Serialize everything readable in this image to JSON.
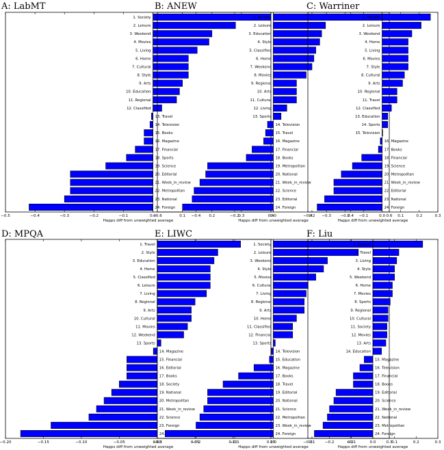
{
  "chart_data": [
    {
      "type": "bar",
      "title": "A: LabMT",
      "xlabel": "Happs diff from unweighted average",
      "xlim": [
        -0.5,
        0.4
      ],
      "xticks": [
        -0.5,
        -0.4,
        -0.3,
        -0.2,
        -0.1,
        0.0,
        0.1,
        0.2,
        0.3,
        0.4
      ],
      "tick_labels": [
        "−0.5",
        "−0.4",
        "−0.3",
        "−0.2",
        "−0.1",
        "0.0",
        "0.1",
        "0.2",
        "0.3",
        "0.4"
      ],
      "categories": [
        "1. Society",
        "2. Leisure",
        "3. Weekend",
        "4. Movies",
        "5. Living",
        "6. Home",
        "7. Cultural",
        "8. Style",
        "9. Arts",
        "10. Education",
        "11. Regional",
        "12. Classified",
        "13. Travel",
        "14. Television",
        "15. Books",
        "16. Magazine",
        "17. Financial",
        "18. Sports",
        "19. Science",
        "20. Editorial",
        "21. Week_in_review",
        "22. Metropolitan",
        "23. National",
        "24. Foreign"
      ],
      "values": [
        0.4,
        0.28,
        0.2,
        0.19,
        0.15,
        0.12,
        0.12,
        0.12,
        0.1,
        0.09,
        0.08,
        0.03,
        -0.005,
        -0.01,
        -0.03,
        -0.03,
        -0.06,
        -0.09,
        -0.16,
        -0.28,
        -0.28,
        -0.28,
        -0.3,
        -0.42
      ]
    },
    {
      "type": "bar",
      "title": "B: ANEW",
      "xlabel": "Happs diff from unweighted average",
      "xlim": [
        -0.6,
        0.6
      ],
      "xticks": [
        -0.6,
        -0.4,
        -0.2,
        0.0,
        0.2,
        0.4,
        0.6
      ],
      "tick_labels": [
        "−0.6",
        "−0.4",
        "−0.2",
        "0.0",
        "0.2",
        "0.4",
        "0.6"
      ],
      "categories": [
        "1. Society",
        "2. Leisure",
        "3. Education",
        "4. Style",
        "5. Classified",
        "6. Home",
        "7. Weekend",
        "8. Movies",
        "9. Regional",
        "10. Arts",
        "11. Cultural",
        "12. Living",
        "13. Sports",
        "14. Television",
        "15. Travel",
        "16. Magazine",
        "17. Financial",
        "18. Books",
        "19. Metropolitan",
        "20. National",
        "21. Week_in_review",
        "22. Science",
        "23. Editorial",
        "24. Foreign"
      ],
      "values": [
        0.58,
        0.27,
        0.25,
        0.24,
        0.22,
        0.21,
        0.2,
        0.17,
        0.12,
        0.12,
        0.12,
        0.07,
        0.04,
        -0.03,
        -0.04,
        -0.05,
        -0.11,
        -0.14,
        -0.34,
        -0.35,
        -0.38,
        -0.41,
        -0.42,
        -0.47
      ]
    },
    {
      "type": "bar",
      "title": "C: Warriner",
      "xlabel": "Happs diff from unweighted average",
      "xlim": [
        -0.4,
        0.3
      ],
      "xticks": [
        -0.4,
        -0.3,
        -0.2,
        -0.1,
        0.0,
        0.1,
        0.2,
        0.3
      ],
      "tick_labels": [
        "−0.4",
        "−0.3",
        "−0.2",
        "−0.1",
        "0.0",
        "0.1",
        "0.2",
        "0.3"
      ],
      "categories": [
        "1. Society",
        "2. Leisure",
        "3. Weekend",
        "4. Home",
        "5. Living",
        "6. Movies",
        "7. Style",
        "8. Cultural",
        "9. Arts",
        "10. Regional",
        "11. Travel",
        "12. Classified",
        "13. Education",
        "14. Sports",
        "15. Television",
        "16. Magazine",
        "17. Books",
        "18. Financial",
        "19. Science",
        "20. Metropolitan",
        "21. Week_in_review",
        "22. Editorial",
        "23. National",
        "24. Foreign"
      ],
      "values": [
        0.26,
        0.21,
        0.16,
        0.14,
        0.14,
        0.14,
        0.14,
        0.12,
        0.11,
        0.08,
        0.08,
        0.05,
        0.03,
        0.03,
        0.0,
        -0.01,
        -0.02,
        -0.11,
        -0.16,
        -0.22,
        -0.26,
        -0.26,
        -0.31,
        -0.35
      ]
    },
    {
      "type": "bar",
      "title": "D: MPQA",
      "xlabel": "Happs diff from unweighted average",
      "xlim": [
        -0.2,
        0.15
      ],
      "xticks": [
        -0.2,
        -0.15,
        -0.1,
        -0.05,
        0.0,
        0.05,
        0.1,
        0.15
      ],
      "tick_labels": [
        "−0.20",
        "−0.15",
        "−0.10",
        "−0.05",
        "0.00",
        "0.05",
        "0.10",
        "0.15"
      ],
      "categories": [
        "1. Travel",
        "2. Style",
        "3. Education",
        "4. Home",
        "5. Classified",
        "6. Leisure",
        "7. Living",
        "8. Regional",
        "9. Arts",
        "10. Cultural",
        "11. Movies",
        "12. Weekend",
        "13. Sports",
        "14. Magazine",
        "15. Financial",
        "16. Editorial",
        "17. Books",
        "18. Society",
        "19. National",
        "20. Metropolitan",
        "21. Week_in_review",
        "22. Science",
        "23. Foreign",
        "24. Television"
      ],
      "values": [
        0.11,
        0.08,
        0.075,
        0.07,
        0.07,
        0.07,
        0.065,
        0.05,
        0.045,
        0.045,
        0.04,
        0.035,
        0.005,
        -0.005,
        -0.04,
        -0.04,
        -0.04,
        -0.05,
        -0.06,
        -0.07,
        -0.08,
        -0.09,
        -0.14,
        -0.18
      ]
    },
    {
      "type": "bar",
      "title": "E: LIWC",
      "xlabel": "Happs diff from unweighted average",
      "xlim": [
        -0.3,
        0.3
      ],
      "xticks": [
        -0.3,
        -0.2,
        -0.1,
        0.0,
        0.1,
        0.2,
        0.3
      ],
      "tick_labels": [
        "−0.3",
        "−0.2",
        "−0.1",
        "0.0",
        "0.1",
        "0.2",
        "0.3"
      ],
      "categories": [
        "1. Society",
        "2. Leisure",
        "3. Weekend",
        "4. Style",
        "5. Movies",
        "6. Cultural",
        "7. Living",
        "8. Regional",
        "9. Arts",
        "10. Home",
        "11. Classified",
        "12. Financial",
        "13. Sports",
        "14. Television",
        "15. Education",
        "16. Magazine",
        "17. Books",
        "18. Travel",
        "19. Editorial",
        "20. National",
        "21. Science",
        "22. Metropolitan",
        "23. Week_in_review",
        "24. Foreign"
      ],
      "values": [
        0.26,
        0.22,
        0.14,
        0.13,
        0.11,
        0.09,
        0.085,
        0.08,
        0.08,
        0.06,
        0.05,
        0.05,
        0.005,
        -0.005,
        -0.01,
        -0.05,
        -0.09,
        -0.13,
        -0.17,
        -0.17,
        -0.18,
        -0.19,
        -0.2,
        -0.28
      ]
    },
    {
      "type": "bar",
      "title": "F: Liu",
      "xlabel": "Happs diff from unweighted average",
      "xlim": [
        -0.3,
        0.3
      ],
      "xticks": [
        -0.3,
        -0.2,
        -0.1,
        0.0,
        0.1,
        0.2,
        0.3
      ],
      "tick_labels": [
        "−0.3",
        "−0.2",
        "−0.1",
        "0.0",
        "0.1",
        "0.2",
        "0.3"
      ],
      "categories": [
        "1. Leisure",
        "2. Travel",
        "3. Living",
        "4. Style",
        "5. Weekend",
        "6. Home",
        "7. Movies",
        "8. Sports",
        "9. Regional",
        "10. Cultural",
        "11. Society",
        "12. Movies",
        "13. Arts",
        "14. Education",
        "15. Magazine",
        "16. Television",
        "17. Financial",
        "18. Books",
        "19. Editorial",
        "20. Science",
        "21. Week_in_review",
        "22. National",
        "23. Metropolitan",
        "24. Foreign"
      ],
      "values": [
        0.23,
        0.12,
        0.11,
        0.1,
        0.1,
        0.09,
        0.09,
        0.08,
        0.07,
        0.07,
        0.065,
        0.065,
        0.06,
        0.04,
        -0.04,
        -0.06,
        -0.09,
        -0.09,
        -0.17,
        -0.18,
        -0.2,
        -0.21,
        -0.23,
        -0.27
      ]
    }
  ]
}
